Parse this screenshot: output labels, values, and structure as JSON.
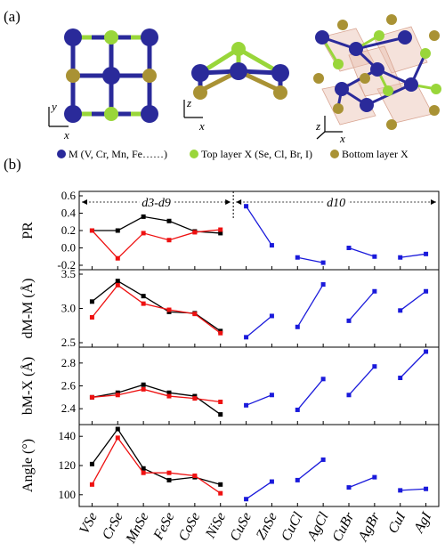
{
  "panel_a_label": "(a)",
  "panel_b_label": "(b)",
  "axes_labels": {
    "x": "x",
    "y": "y",
    "z": "z"
  },
  "legend": [
    {
      "label": "M (V, Cr, Mn, Fe……)",
      "color": "#2a2a9a"
    },
    {
      "label": "Top layer X (Se, Cl, Br, I)",
      "color": "#99d63a"
    },
    {
      "label": "Bottom layer X",
      "color": "#a99234"
    }
  ],
  "colors": {
    "black": "#000000",
    "red": "#ee1111",
    "blue": "#1a1adb"
  },
  "annotations": {
    "left_region": "d3-d9",
    "right_region": "d10"
  },
  "chart_data": {
    "type": "line",
    "categories": [
      "VSe",
      "CrSe",
      "MnSe",
      "FeSe",
      "CoSe",
      "NiSe",
      "CuSe",
      "ZnSe",
      "CuCl",
      "AgCl",
      "CuBr",
      "AgBr",
      "CuI",
      "AgI"
    ],
    "panels": [
      {
        "ylabel": "PR",
        "ylim": [
          -0.2,
          0.6
        ],
        "yticks": [
          "-0.2",
          "0.0",
          "0.2",
          "0.4",
          "0.6"
        ],
        "series": [
          {
            "color": "#000000",
            "x": [
              0,
              1,
              2,
              3,
              4,
              5
            ],
            "values": [
              0.2,
              0.2,
              0.36,
              0.31,
              0.19,
              0.17
            ]
          },
          {
            "color": "#ee1111",
            "x": [
              0,
              1,
              2,
              3,
              4,
              5
            ],
            "values": [
              0.2,
              -0.12,
              0.17,
              0.09,
              0.18,
              0.21
            ]
          },
          {
            "color": "#1a1adb",
            "x": [
              6,
              7
            ],
            "values": [
              0.48,
              0.03
            ]
          },
          {
            "color": "#1a1adb",
            "x": [
              8,
              9
            ],
            "values": [
              -0.11,
              -0.17
            ]
          },
          {
            "color": "#1a1adb",
            "x": [
              10,
              11
            ],
            "values": [
              0.0,
              -0.1
            ]
          },
          {
            "color": "#1a1adb",
            "x": [
              12,
              13
            ],
            "values": [
              -0.11,
              -0.07
            ]
          }
        ]
      },
      {
        "ylabel": "dM-M (Å)",
        "ylim": [
          2.5,
          3.5
        ],
        "yticks": [
          "2.5",
          "3.0",
          "3.5"
        ],
        "series": [
          {
            "color": "#000000",
            "x": [
              0,
              1,
              2,
              3,
              4,
              5
            ],
            "values": [
              3.1,
              3.4,
              3.18,
              2.95,
              2.93,
              2.67
            ]
          },
          {
            "color": "#ee1111",
            "x": [
              0,
              1,
              2,
              3,
              4,
              5
            ],
            "values": [
              2.87,
              3.34,
              3.07,
              2.98,
              2.92,
              2.64
            ]
          },
          {
            "color": "#1a1adb",
            "x": [
              6,
              7
            ],
            "values": [
              2.58,
              2.89
            ]
          },
          {
            "color": "#1a1adb",
            "x": [
              8,
              9
            ],
            "values": [
              2.73,
              3.35
            ]
          },
          {
            "color": "#1a1adb",
            "x": [
              10,
              11
            ],
            "values": [
              2.82,
              3.25
            ]
          },
          {
            "color": "#1a1adb",
            "x": [
              12,
              13
            ],
            "values": [
              2.97,
              3.25
            ]
          }
        ]
      },
      {
        "ylabel": "bM-X (Å)",
        "ylim": [
          2.3,
          2.9
        ],
        "yticks": [
          "2.4",
          "2.6",
          "2.8"
        ],
        "series": [
          {
            "color": "#000000",
            "x": [
              0,
              1,
              2,
              3,
              4,
              5
            ],
            "values": [
              2.5,
              2.54,
              2.61,
              2.54,
              2.51,
              2.35
            ]
          },
          {
            "color": "#ee1111",
            "x": [
              0,
              1,
              2,
              3,
              4,
              5
            ],
            "values": [
              2.5,
              2.52,
              2.57,
              2.51,
              2.49,
              2.46
            ]
          },
          {
            "color": "#1a1adb",
            "x": [
              6,
              7
            ],
            "values": [
              2.43,
              2.52
            ]
          },
          {
            "color": "#1a1adb",
            "x": [
              8,
              9
            ],
            "values": [
              2.39,
              2.66
            ]
          },
          {
            "color": "#1a1adb",
            "x": [
              10,
              11
            ],
            "values": [
              2.52,
              2.77
            ]
          },
          {
            "color": "#1a1adb",
            "x": [
              12,
              13
            ],
            "values": [
              2.67,
              2.9
            ]
          }
        ]
      },
      {
        "ylabel": "Angle (°)",
        "ylim": [
          95,
          145
        ],
        "yticks": [
          "100",
          "120",
          "140"
        ],
        "series": [
          {
            "color": "#000000",
            "x": [
              0,
              1,
              2,
              3,
              4,
              5
            ],
            "values": [
              121,
              145,
              118,
              110,
              112,
              107
            ]
          },
          {
            "color": "#ee1111",
            "x": [
              0,
              1,
              2,
              3,
              4,
              5
            ],
            "values": [
              107,
              139,
              115,
              115,
              113,
              101
            ]
          },
          {
            "color": "#1a1adb",
            "x": [
              6,
              7
            ],
            "values": [
              97,
              109
            ]
          },
          {
            "color": "#1a1adb",
            "x": [
              8,
              9
            ],
            "values": [
              110,
              124
            ]
          },
          {
            "color": "#1a1adb",
            "x": [
              10,
              11
            ],
            "values": [
              105,
              112
            ]
          },
          {
            "color": "#1a1adb",
            "x": [
              12,
              13
            ],
            "values": [
              103,
              104
            ]
          }
        ]
      }
    ]
  }
}
